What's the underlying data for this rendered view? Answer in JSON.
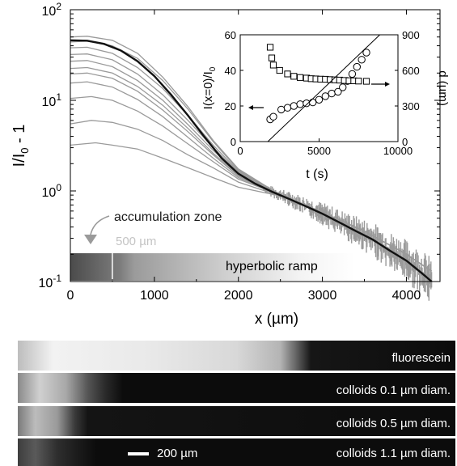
{
  "colors": {
    "data_curves": "#9a9a9a",
    "fit_curve": "#111111",
    "annotation_gray": "#a8a8a8",
    "panel_bg": "#0c0c0c",
    "panel_text": "#ffffff"
  },
  "chart_data": [
    {
      "type": "line",
      "title": "",
      "xlabel": "x (µm)",
      "ylabel": "I/I0 - 1",
      "ylabel_parts": {
        "main": "I/I",
        "sub": "0",
        "rest": " - 1"
      },
      "y_scale": "log",
      "xlim": [
        0,
        4400
      ],
      "ylim": [
        0.1,
        100
      ],
      "xticks": [
        0,
        1000,
        2000,
        3000,
        4000
      ],
      "xtick_labels": [
        "0",
        "1000",
        "2000",
        "3000",
        "4000"
      ],
      "yticks": [
        0.1,
        1,
        10,
        100
      ],
      "ytick_labels": [
        {
          "base": "10",
          "exp": "-1"
        },
        {
          "base": "10",
          "exp": "0"
        },
        {
          "base": "10",
          "exp": "1"
        },
        {
          "base": "10",
          "exp": "2"
        }
      ],
      "grid": false,
      "series_data": [
        {
          "x": [
            0,
            300,
            500,
            800,
            1100,
            1400,
            1700,
            2000,
            2500,
            3000,
            3500,
            4000,
            4300
          ],
          "y": [
            3.2,
            3.4,
            3.2,
            2.9,
            2.3,
            1.8,
            1.4,
            1.1,
            0.88,
            0.58,
            0.36,
            0.2,
            0.13
          ]
        },
        {
          "x": [
            0,
            250,
            500,
            800,
            1100,
            1400,
            1700,
            2000,
            2500,
            3000,
            3500,
            4000,
            4300
          ],
          "y": [
            5.5,
            6.0,
            5.7,
            4.8,
            3.6,
            2.5,
            1.8,
            1.25,
            0.88,
            0.58,
            0.36,
            0.2,
            0.13
          ]
        },
        {
          "x": [
            0,
            250,
            500,
            800,
            1100,
            1400,
            1700,
            2000,
            2500,
            3000,
            3500,
            4000,
            4300
          ],
          "y": [
            10.5,
            11.0,
            10.0,
            7.6,
            5.2,
            3.3,
            2.1,
            1.35,
            0.9,
            0.58,
            0.36,
            0.2,
            0.13
          ]
        },
        {
          "x": [
            0,
            200,
            500,
            800,
            1100,
            1400,
            1700,
            2000,
            2500,
            3000,
            3500,
            4000,
            4300
          ],
          "y": [
            15.5,
            16.0,
            14.0,
            10.2,
            6.6,
            3.9,
            2.3,
            1.4,
            0.9,
            0.58,
            0.36,
            0.2,
            0.13
          ]
        },
        {
          "x": [
            0,
            200,
            500,
            800,
            1100,
            1400,
            1700,
            2000,
            2500,
            3000,
            3500,
            4000,
            4300
          ],
          "y": [
            19.5,
            20.0,
            17.5,
            12.6,
            7.8,
            4.5,
            2.5,
            1.45,
            0.9,
            0.58,
            0.36,
            0.2,
            0.13
          ]
        },
        {
          "x": [
            0,
            200,
            500,
            800,
            1100,
            1400,
            1700,
            2000,
            2500,
            3000,
            3500,
            4000,
            4300
          ],
          "y": [
            22.5,
            23.0,
            20.0,
            14.2,
            8.8,
            4.9,
            2.6,
            1.5,
            0.9,
            0.58,
            0.36,
            0.2,
            0.13
          ]
        },
        {
          "x": [
            0,
            200,
            500,
            800,
            1100,
            1400,
            1700,
            2000,
            2500,
            3000,
            3500,
            4000,
            4300
          ],
          "y": [
            27.0,
            27.5,
            23.5,
            16.5,
            10.0,
            5.4,
            2.8,
            1.55,
            0.9,
            0.58,
            0.36,
            0.2,
            0.13
          ]
        },
        {
          "x": [
            0,
            200,
            500,
            800,
            1100,
            1400,
            1700,
            2000,
            2500,
            3000,
            3500,
            4000,
            4300
          ],
          "y": [
            32.0,
            32.5,
            28.0,
            19.5,
            11.5,
            6.0,
            3.0,
            1.6,
            0.9,
            0.58,
            0.36,
            0.2,
            0.13
          ]
        },
        {
          "x": [
            0,
            200,
            500,
            800,
            1100,
            1400,
            1700,
            2000,
            2500,
            3000,
            3500,
            4000,
            4300
          ],
          "y": [
            38.0,
            38.5,
            33.0,
            23.0,
            13.5,
            6.8,
            3.2,
            1.65,
            0.9,
            0.58,
            0.36,
            0.2,
            0.13
          ]
        },
        {
          "x": [
            0,
            200,
            500,
            800,
            1100,
            1400,
            1700,
            2000,
            2500,
            3000,
            3500,
            4000,
            4300
          ],
          "y": [
            44.0,
            45.0,
            40.0,
            29.0,
            16.5,
            8.0,
            3.5,
            1.7,
            0.9,
            0.58,
            0.36,
            0.2,
            0.13
          ]
        },
        {
          "x": [
            0,
            200,
            500,
            800,
            1100,
            1400,
            1700,
            2000,
            2500,
            3000,
            3500,
            4000,
            4300
          ],
          "y": [
            50.0,
            51.0,
            46.0,
            33.0,
            18.0,
            8.5,
            3.6,
            1.75,
            0.9,
            0.58,
            0.36,
            0.2,
            0.13
          ]
        }
      ],
      "fit": {
        "x": [
          0,
          200,
          400,
          600,
          800,
          1000,
          1200,
          1400,
          1600,
          1800,
          2000,
          2200,
          2400,
          2600,
          2800,
          3000,
          3200,
          3400,
          3600,
          3800,
          4000,
          4200,
          4300
        ],
        "y": [
          46.0,
          45.5,
          42.0,
          35.5,
          27.0,
          18.5,
          11.5,
          6.8,
          3.9,
          2.3,
          1.55,
          1.2,
          0.98,
          0.82,
          0.68,
          0.56,
          0.45,
          0.36,
          0.29,
          0.22,
          0.17,
          0.12,
          0.1
        ]
      },
      "annotations": {
        "accumulation_zone": "accumulation zone",
        "ramp_label": "hyperbolic ramp",
        "zone_width": "500 µm",
        "zone_boundary_x": 500
      }
    },
    {
      "type": "scatter",
      "title": "",
      "xlabel": "t (s)",
      "ylabel_left": "I(x=0)/I0",
      "ylabel_left_parts": {
        "main": "I(x=0)/I",
        "sub": "0"
      },
      "ylabel_right": "d (µm)",
      "xlim": [
        0,
        10000
      ],
      "ylim_left": [
        0,
        60
      ],
      "ylim_right": [
        0,
        900
      ],
      "xticks": [
        0,
        5000,
        10000
      ],
      "xtick_labels": [
        "0",
        "5000",
        "10000"
      ],
      "yticks_left": [
        0,
        20,
        40,
        60
      ],
      "ytick_left_labels": [
        "0",
        "20",
        "40",
        "60"
      ],
      "yticks_right": [
        0,
        300,
        600,
        900
      ],
      "ytick_right_labels": [
        "0",
        "300",
        "600",
        "900"
      ],
      "series": [
        {
          "marker": "circle",
          "axis": "left",
          "x": [
            1900,
            2100,
            2600,
            3000,
            3400,
            3800,
            4200,
            4600,
            5000,
            5400,
            5800,
            6200,
            6500,
            6800,
            7100,
            7400,
            7700,
            8000
          ],
          "y": [
            12.5,
            14.0,
            18.0,
            19.0,
            20.0,
            21.0,
            21.5,
            22.0,
            23.5,
            25.5,
            27.0,
            28.0,
            30.5,
            34.0,
            38.0,
            42.0,
            46.0,
            50.0
          ]
        },
        {
          "marker": "square",
          "axis": "right",
          "x": [
            1900,
            2000,
            2100,
            2500,
            3000,
            3400,
            3800,
            4200,
            4500,
            4800,
            5100,
            5400,
            5700,
            6000,
            6300,
            6600,
            6900,
            7200,
            7500,
            8000
          ],
          "y": [
            795,
            705,
            645,
            600,
            570,
            550,
            540,
            535,
            530,
            528,
            526,
            525,
            522,
            520,
            518,
            515,
            513,
            512,
            510,
            508
          ]
        }
      ],
      "linear_fit_left": {
        "x": [
          1750,
          8850
        ],
        "y": [
          0,
          60
        ]
      }
    }
  ],
  "panels": [
    {
      "label": "fluorescein"
    },
    {
      "label": "colloids 0.1 µm diam."
    },
    {
      "label": "colloids 0.5 µm diam."
    },
    {
      "label": "colloids 1.1 µm diam."
    }
  ],
  "scale_bar": {
    "label": "200 µm"
  }
}
